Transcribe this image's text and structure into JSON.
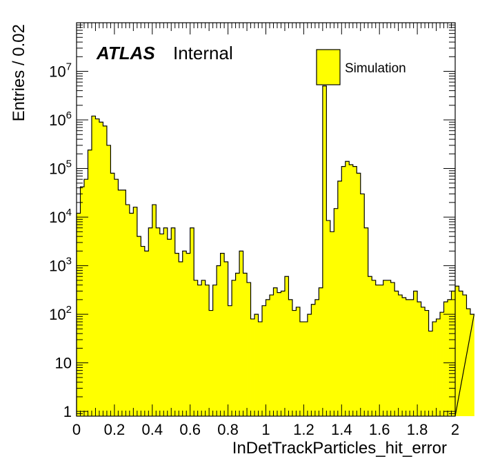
{
  "chart_data": {
    "type": "bar",
    "title": "",
    "xlabel": "InDetTrackParticles_hit_error",
    "ylabel": "Entries / 0.02",
    "xlim": [
      0,
      2
    ],
    "ylim": [
      0.8,
      100000000
    ],
    "log_y": true,
    "bin_width": 0.02,
    "x_ticks": [
      0,
      0.2,
      0.4,
      0.6,
      0.8,
      1,
      1.2,
      1.4,
      1.6,
      1.8,
      2
    ],
    "x_tick_labels": [
      "0",
      "0.2",
      "0.4",
      "0.6",
      "0.8",
      "1",
      "1.2",
      "1.4",
      "1.6",
      "1.8",
      "2"
    ],
    "y_ticks": [
      1,
      10,
      100,
      1000,
      10000,
      100000,
      1000000,
      10000000
    ],
    "y_tick_labels": [
      {
        "base": "1",
        "exp": ""
      },
      {
        "base": "10",
        "exp": ""
      },
      {
        "base": "10",
        "exp": "2"
      },
      {
        "base": "10",
        "exp": "3"
      },
      {
        "base": "10",
        "exp": "4"
      },
      {
        "base": "10",
        "exp": "5"
      },
      {
        "base": "10",
        "exp": "6"
      },
      {
        "base": "10",
        "exp": "7"
      }
    ],
    "series": [
      {
        "name": "Simulation",
        "color": "#ffff00",
        "values": [
          12000,
          42000,
          60000,
          240000,
          1200000,
          1050000,
          900000,
          750000,
          300000,
          80000,
          60000,
          36000,
          36000,
          18000,
          12000,
          16000,
          4000,
          2500,
          2000,
          6000,
          18000,
          6000,
          4500,
          6000,
          3500,
          6000,
          1800,
          1200,
          2000,
          1800,
          6000,
          500,
          400,
          500,
          400,
          120,
          400,
          1000,
          1800,
          1200,
          150,
          500,
          700,
          2000,
          700,
          450,
          80,
          100,
          70,
          150,
          200,
          250,
          350,
          280,
          300,
          600,
          200,
          120,
          140,
          70,
          70,
          100,
          160,
          200,
          350,
          5000000,
          8500,
          5000,
          15000,
          55000,
          110000,
          140000,
          120000,
          110000,
          80000,
          30000,
          6000,
          600,
          500,
          400,
          400,
          500,
          500,
          450,
          300,
          250,
          220,
          200,
          200,
          300,
          180,
          140,
          120,
          45,
          70,
          80,
          110,
          180,
          200,
          300,
          380,
          300,
          250,
          130,
          100
        ]
      }
    ],
    "legend": {
      "position": "top-right",
      "entries": [
        "Simulation"
      ]
    },
    "annotation": {
      "bold": "ATLAS",
      "normal": "Internal"
    }
  }
}
